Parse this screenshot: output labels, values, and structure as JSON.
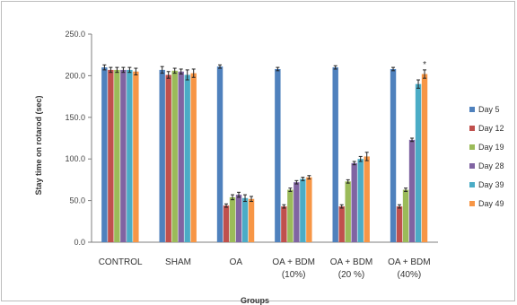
{
  "chart_data": {
    "type": "bar",
    "xlabel": "Groups",
    "ylabel": "Stay time on rotarod (sec)",
    "ylim": [
      0,
      250
    ],
    "yticks": [
      "0.0",
      "50.0",
      "100.0",
      "150.0",
      "200.0",
      "250.0"
    ],
    "grid": false,
    "legend_position": "right",
    "categories": [
      [
        "CONTROL"
      ],
      [
        "SHAM"
      ],
      [
        "OA"
      ],
      [
        "OA + BDM",
        "(10%)"
      ],
      [
        "OA + BDM",
        "(20 %)"
      ],
      [
        "OA + BDM",
        "(40%)"
      ]
    ],
    "series": [
      {
        "name": "Day 5",
        "color": "#4f81bd",
        "values": [
          210,
          207,
          211,
          208,
          210,
          208
        ],
        "errors": [
          3,
          4,
          2,
          2,
          2,
          2
        ]
      },
      {
        "name": "Day 12",
        "color": "#c0504d",
        "values": [
          207,
          201,
          44,
          43,
          43,
          43
        ],
        "errors": [
          3,
          4,
          2,
          2,
          2,
          2
        ]
      },
      {
        "name": "Day 19",
        "color": "#9bbb59",
        "values": [
          207,
          206,
          54,
          63,
          73,
          63
        ],
        "errors": [
          3,
          3,
          3,
          2,
          2,
          2
        ]
      },
      {
        "name": "Day 28",
        "color": "#8064a2",
        "values": [
          207,
          205,
          57,
          72,
          95,
          123
        ],
        "errors": [
          3,
          3,
          3,
          2,
          2,
          2
        ]
      },
      {
        "name": "Day 39",
        "color": "#4bacc6",
        "values": [
          207,
          201,
          53,
          76,
          100,
          190
        ],
        "errors": [
          3,
          6,
          4,
          2,
          3,
          5
        ]
      },
      {
        "name": "Day 49",
        "color": "#f79646",
        "values": [
          205,
          203,
          52,
          78,
          103,
          202
        ],
        "errors": [
          4,
          5,
          3,
          2,
          5,
          5
        ]
      }
    ],
    "annotations": [
      {
        "text": "*",
        "category_index": 5,
        "series_index": 5
      }
    ]
  }
}
